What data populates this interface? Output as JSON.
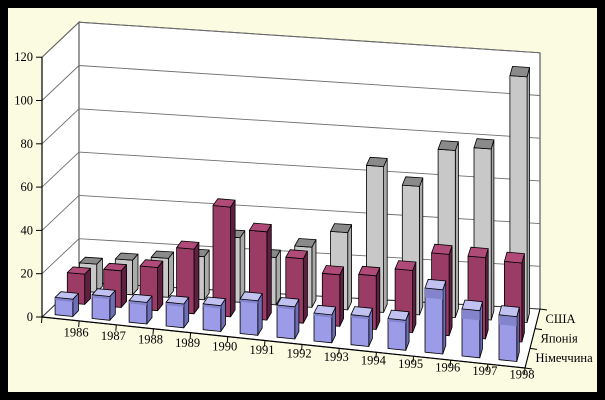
{
  "window": {
    "frame_color": "#000000",
    "canvas_background": "#FBFBE2"
  },
  "chart_data": {
    "type": "bar",
    "projection": "3d-perspective",
    "title": "",
    "categories": [
      "1986",
      "1987",
      "1988",
      "1989",
      "1990",
      "1991",
      "1992",
      "1993",
      "1994",
      "1995",
      "1996",
      "1997",
      "1998"
    ],
    "series": [
      {
        "name": "США",
        "depth_row": "back",
        "values": [
          13,
          16,
          18,
          20,
          30,
          22,
          28,
          36,
          68,
          60,
          78,
          80,
          115
        ],
        "colors": {
          "front": "#C8C8C8",
          "side": "#ABABAB",
          "top": "#8A8A8A"
        }
      },
      {
        "name": "Японія",
        "depth_row": "middle",
        "values": [
          14,
          17,
          20,
          30,
          51,
          41,
          30,
          24,
          25,
          29,
          38,
          38,
          37
        ],
        "colors": {
          "front": "#9A3C66",
          "side": "#5E2040",
          "top": "#B04A78"
        }
      },
      {
        "name": "Німеччина",
        "depth_row": "front",
        "values": [
          8,
          11,
          10,
          11,
          12,
          16,
          15,
          13,
          14,
          14,
          30,
          22,
          21
        ],
        "colors": {
          "front": "#9B9BE8",
          "side": "#6E6EB6",
          "top": "#C2C2F2",
          "bevel": "#8484CC"
        }
      }
    ],
    "value_axis": {
      "min": 0,
      "max": 120,
      "step": 20,
      "tick_labels": [
        "0",
        "20",
        "40",
        "60",
        "80",
        "100",
        "120"
      ]
    },
    "depth_axis_labels": [
      "США",
      "Японія",
      "Німеччина"
    ],
    "legend_position": "right-depth-axis",
    "walls": {
      "fill": "#FFFFFF",
      "grid_color": "#6E6E6E",
      "edge_color": "#3A3A3A"
    },
    "text_color": "#000000",
    "grid": true
  }
}
